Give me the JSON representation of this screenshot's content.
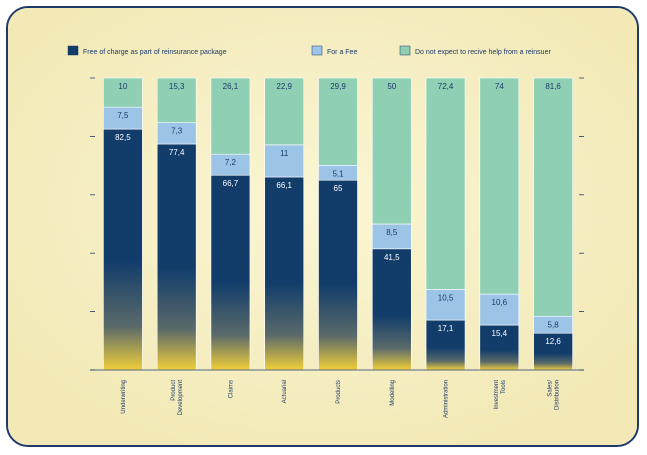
{
  "chart_data": {
    "type": "bar",
    "stacked": true,
    "orientation": "vertical",
    "categories": [
      "Underwriting",
      "Product Development",
      "Claims",
      "Actuarial",
      "Products",
      "Modelling",
      "Administration",
      "Investment Tools",
      "Sales/ Distribution"
    ],
    "series": [
      {
        "name": "Free of charge as part of reinsurance package",
        "color": "#123d6b",
        "values": [
          82.5,
          77.4,
          66.7,
          66.1,
          65,
          41.5,
          17.1,
          15.4,
          12.6
        ],
        "labels": [
          "82,5",
          "77,4",
          "66,7",
          "66,1",
          "65",
          "41,5",
          "17,1",
          "15,4",
          "12,6"
        ]
      },
      {
        "name": "For a Fee",
        "color": "#9cc4e6",
        "values": [
          7.5,
          7.3,
          7.2,
          11,
          5.1,
          8.5,
          10.5,
          10.6,
          5.8
        ],
        "labels": [
          "7,5",
          "7,3",
          "7,2",
          "11",
          "5,1",
          "8,5",
          "10,5",
          "10,6",
          "5,8"
        ]
      },
      {
        "name": "Do not expect to recive help from a reinsuer",
        "color": "#8fcfb3",
        "values": [
          10,
          15.3,
          26.1,
          22.9,
          29.9,
          50,
          72.4,
          74,
          81.6
        ],
        "labels": [
          "10",
          "15,3",
          "26,1",
          "22,9",
          "29,9",
          "50",
          "72,4",
          "74",
          "81,6"
        ]
      }
    ],
    "ylim": [
      0,
      100
    ],
    "grid": false,
    "legend_placement": "top"
  }
}
